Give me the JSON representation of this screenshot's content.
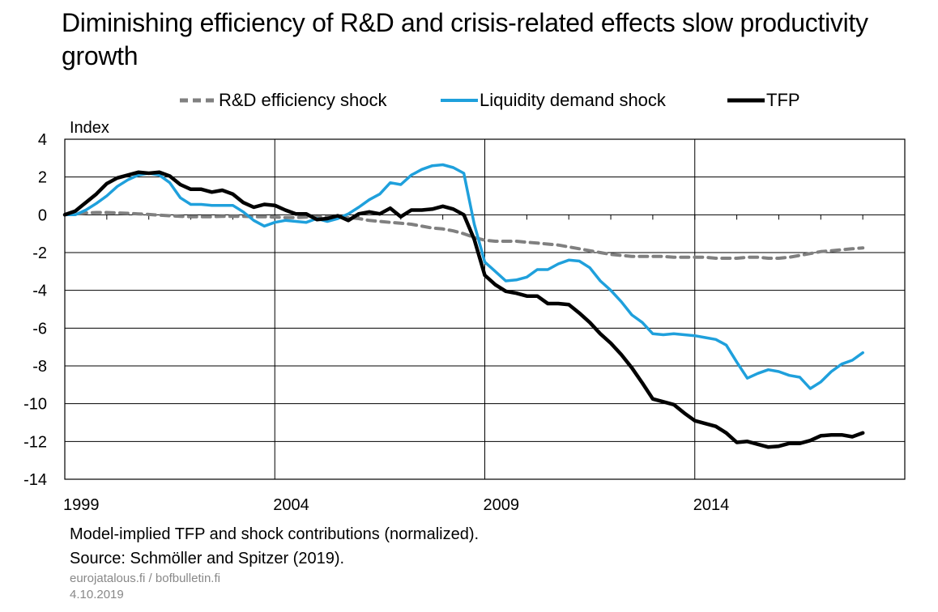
{
  "title": "Diminishing efficiency of R&D and crisis-related effects slow productivity growth",
  "legend": [
    {
      "label": "R&D efficiency shock",
      "color": "#808080",
      "style": "dashed"
    },
    {
      "label": "Liquidity demand shock",
      "color": "#1fa0dc",
      "style": "solid"
    },
    {
      "label": "TFP",
      "color": "#000000",
      "style": "solid"
    }
  ],
  "ylabel": "Index",
  "footer": {
    "note": "Model-implied TFP and shock contributions (normalized).",
    "source": "Source: Schmöller and Spitzer (2019).",
    "site": "eurojatalous.fi / bofbulletin.fi",
    "date": "4.10.2019"
  },
  "chart_data": {
    "type": "line",
    "title": "Diminishing efficiency of R&D and crisis-related effects slow productivity growth",
    "ylabel": "Index",
    "xlabel": "",
    "xlim": [
      1999,
      2019
    ],
    "ylim": [
      -14,
      4
    ],
    "yticks": [
      4,
      2,
      0,
      -2,
      -4,
      -6,
      -8,
      -10,
      -12,
      -14
    ],
    "xticks": [
      1999,
      2004,
      2009,
      2014
    ],
    "grid": true,
    "legend_position": "top",
    "x": [
      1999.0,
      1999.25,
      1999.5,
      1999.75,
      2000.0,
      2000.25,
      2000.5,
      2000.75,
      2001.0,
      2001.25,
      2001.5,
      2001.75,
      2002.0,
      2002.25,
      2002.5,
      2002.75,
      2003.0,
      2003.25,
      2003.5,
      2003.75,
      2004.0,
      2004.25,
      2004.5,
      2004.75,
      2005.0,
      2005.25,
      2005.5,
      2005.75,
      2006.0,
      2006.25,
      2006.5,
      2006.75,
      2007.0,
      2007.25,
      2007.5,
      2007.75,
      2008.0,
      2008.25,
      2008.5,
      2008.75,
      2009.0,
      2009.25,
      2009.5,
      2009.75,
      2010.0,
      2010.25,
      2010.5,
      2010.75,
      2011.0,
      2011.25,
      2011.5,
      2011.75,
      2012.0,
      2012.25,
      2012.5,
      2012.75,
      2013.0,
      2013.25,
      2013.5,
      2013.75,
      2014.0,
      2014.25,
      2014.5,
      2014.75,
      2015.0,
      2015.25,
      2015.5,
      2015.75,
      2016.0,
      2016.25,
      2016.5,
      2016.75,
      2017.0,
      2017.25,
      2017.5,
      2017.75,
      2018.0
    ],
    "series": [
      {
        "name": "R&D efficiency shock",
        "color": "#808080",
        "style": "dashed",
        "values": [
          0.0,
          0.05,
          0.1,
          0.12,
          0.12,
          0.1,
          0.08,
          0.05,
          0.02,
          -0.02,
          -0.05,
          -0.08,
          -0.1,
          -0.1,
          -0.1,
          -0.08,
          -0.08,
          -0.08,
          -0.1,
          -0.1,
          -0.12,
          -0.15,
          -0.15,
          -0.12,
          -0.1,
          -0.1,
          -0.12,
          -0.15,
          -0.2,
          -0.3,
          -0.35,
          -0.4,
          -0.45,
          -0.5,
          -0.6,
          -0.7,
          -0.75,
          -0.85,
          -1.0,
          -1.2,
          -1.35,
          -1.4,
          -1.4,
          -1.4,
          -1.45,
          -1.5,
          -1.55,
          -1.6,
          -1.7,
          -1.8,
          -1.9,
          -2.0,
          -2.1,
          -2.15,
          -2.2,
          -2.2,
          -2.2,
          -2.2,
          -2.25,
          -2.25,
          -2.25,
          -2.25,
          -2.3,
          -2.3,
          -2.3,
          -2.25,
          -2.25,
          -2.3,
          -2.3,
          -2.25,
          -2.15,
          -2.05,
          -1.95,
          -1.9,
          -1.85,
          -1.8,
          -1.75
        ]
      },
      {
        "name": "Liquidity demand shock",
        "color": "#1fa0dc",
        "style": "solid",
        "values": [
          0.0,
          0.0,
          0.25,
          0.6,
          1.0,
          1.5,
          1.85,
          2.1,
          2.2,
          2.1,
          1.7,
          0.9,
          0.55,
          0.55,
          0.5,
          0.5,
          0.5,
          0.15,
          -0.3,
          -0.6,
          -0.4,
          -0.3,
          -0.35,
          -0.4,
          -0.2,
          -0.35,
          -0.2,
          0.05,
          0.4,
          0.8,
          1.1,
          1.7,
          1.6,
          2.1,
          2.4,
          2.6,
          2.65,
          2.5,
          2.2,
          -0.5,
          -2.5,
          -3.0,
          -3.5,
          -3.45,
          -3.3,
          -2.9,
          -2.9,
          -2.6,
          -2.4,
          -2.45,
          -2.8,
          -3.5,
          -4.0,
          -4.6,
          -5.3,
          -5.7,
          -6.3,
          -6.35,
          -6.3,
          -6.35,
          -6.4,
          -6.5,
          -6.6,
          -6.9,
          -7.8,
          -8.65,
          -8.4,
          -8.2,
          -8.3,
          -8.5,
          -8.6,
          -9.2,
          -8.85,
          -8.3,
          -7.9,
          -7.7,
          -7.3
        ]
      },
      {
        "name": "TFP",
        "color": "#000000",
        "style": "solid",
        "values": [
          0.0,
          0.2,
          0.65,
          1.1,
          1.65,
          1.95,
          2.1,
          2.25,
          2.2,
          2.25,
          2.05,
          1.6,
          1.35,
          1.35,
          1.2,
          1.3,
          1.1,
          0.65,
          0.4,
          0.55,
          0.5,
          0.25,
          0.05,
          0.05,
          -0.25,
          -0.2,
          -0.05,
          -0.3,
          0.05,
          0.15,
          0.05,
          0.35,
          -0.1,
          0.25,
          0.25,
          0.3,
          0.45,
          0.3,
          0.0,
          -1.3,
          -3.2,
          -3.7,
          -4.05,
          -4.15,
          -4.3,
          -4.3,
          -4.7,
          -4.7,
          -4.75,
          -5.2,
          -5.7,
          -6.3,
          -6.8,
          -7.4,
          -8.1,
          -8.9,
          -9.75,
          -9.9,
          -10.05,
          -10.5,
          -10.9,
          -11.05,
          -11.2,
          -11.55,
          -12.05,
          -12.0,
          -12.15,
          -12.3,
          -12.25,
          -12.1,
          -12.1,
          -11.95,
          -11.7,
          -11.65,
          -11.65,
          -11.75,
          -11.55
        ]
      }
    ]
  }
}
